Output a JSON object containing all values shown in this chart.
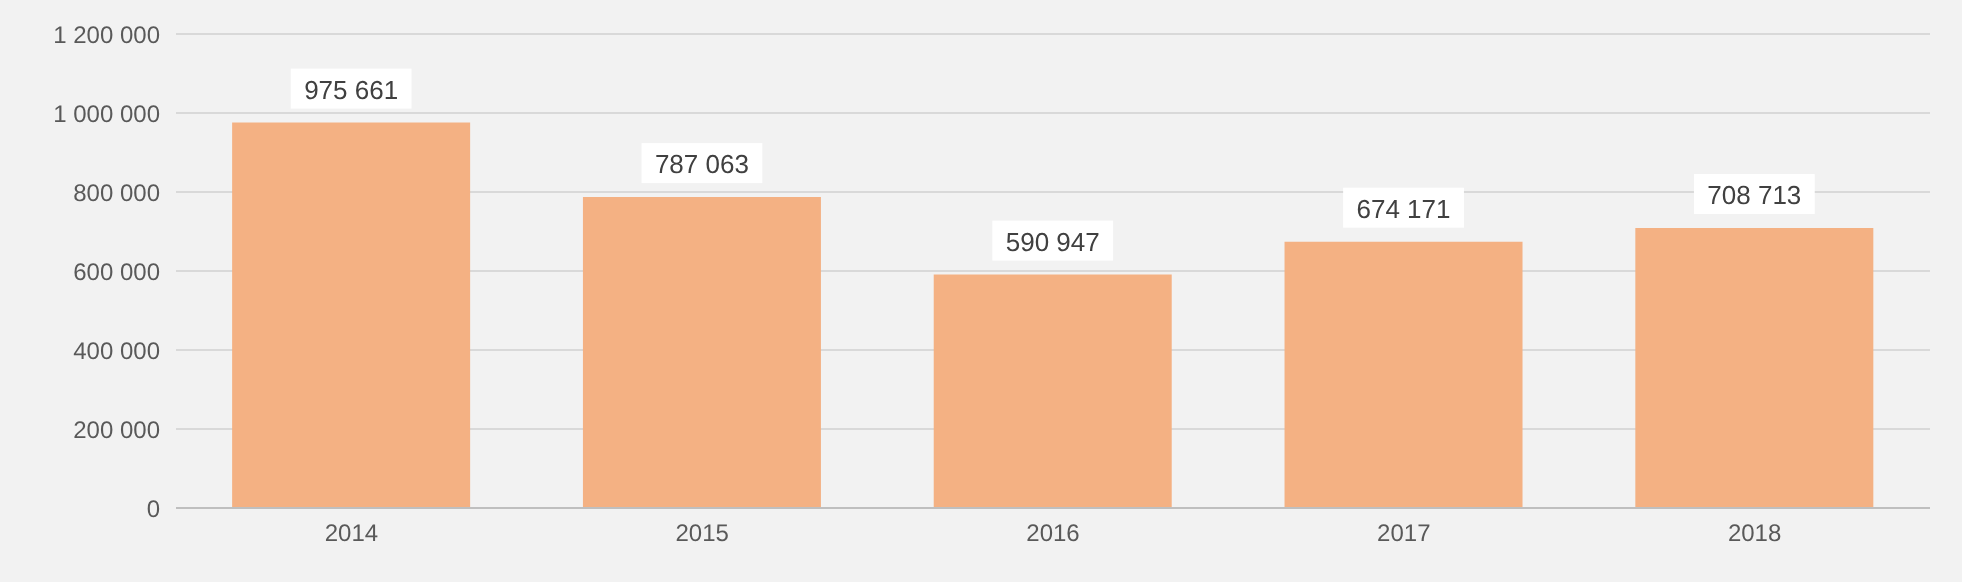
{
  "chart_data": {
    "type": "bar",
    "categories": [
      "2014",
      "2015",
      "2016",
      "2017",
      "2018"
    ],
    "values": [
      975661,
      787063,
      590947,
      674171,
      708713
    ],
    "value_labels": [
      "975 661",
      "787 063",
      "590 947",
      "674 171",
      "708 713"
    ],
    "color": "#f4b183",
    "ylim": [
      0,
      1200000
    ],
    "yticks": [
      0,
      {
        "value": 200000,
        "label": "200 000"
      },
      {
        "value": 400000,
        "label": "400 000"
      },
      {
        "value": 600000,
        "label": "600 000"
      },
      {
        "value": 800000,
        "label": "800 000"
      },
      {
        "value": 1000000,
        "label": "1 000 000"
      },
      {
        "value": 1200000,
        "label": "1 200 000"
      }
    ],
    "grid": "y",
    "legend": false
  }
}
